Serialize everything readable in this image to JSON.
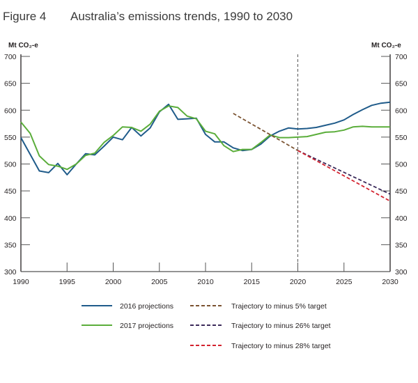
{
  "figure": {
    "number": "Figure 4",
    "title": "Australia’s emissions trends, 1990 to 2030"
  },
  "chart_data": {
    "type": "line",
    "title": "Australia’s emissions trends, 1990 to 2030",
    "xlabel": "",
    "ylabel": "Mt CO2-e",
    "ylabel_left": "Mt CO₂-e",
    "ylabel_right": "Mt CO₂-e",
    "xlim": [
      1990,
      2030
    ],
    "ylim": [
      300,
      700
    ],
    "x_ticks": [
      1990,
      1995,
      2000,
      2005,
      2010,
      2015,
      2020,
      2025,
      2030
    ],
    "y_ticks": [
      300,
      350,
      400,
      450,
      500,
      550,
      600,
      650,
      700
    ],
    "grid": false,
    "reference_line": {
      "x": 2020,
      "style": "dashed",
      "color": "#555555"
    },
    "legend_position": "bottom",
    "series": [
      {
        "name": "2016 projections",
        "style": "solid",
        "color": "#1f5b8a",
        "x": [
          1990,
          1991,
          1992,
          1993,
          1994,
          1995,
          1996,
          1997,
          1998,
          1999,
          2000,
          2001,
          2002,
          2003,
          2004,
          2005,
          2006,
          2007,
          2008,
          2009,
          2010,
          2011,
          2012,
          2013,
          2014,
          2015,
          2016,
          2017,
          2018,
          2019,
          2020,
          2021,
          2022,
          2023,
          2024,
          2025,
          2026,
          2027,
          2028,
          2029,
          2030
        ],
        "values": [
          549,
          518,
          487,
          484,
          501,
          480,
          500,
          519,
          517,
          533,
          550,
          545,
          568,
          552,
          567,
          597,
          611,
          583,
          584,
          585,
          555,
          541,
          541,
          530,
          525,
          527,
          537,
          552,
          561,
          567,
          565,
          566,
          568,
          572,
          576,
          582,
          592,
          601,
          609,
          613,
          615
        ]
      },
      {
        "name": "2017 projections",
        "style": "solid",
        "color": "#5aad3a",
        "x": [
          1990,
          1991,
          1992,
          1993,
          1994,
          1995,
          1996,
          1997,
          1998,
          1999,
          2000,
          2001,
          2002,
          2003,
          2004,
          2005,
          2006,
          2007,
          2008,
          2009,
          2010,
          2011,
          2012,
          2013,
          2014,
          2015,
          2016,
          2017,
          2018,
          2019,
          2020,
          2021,
          2022,
          2023,
          2024,
          2025,
          2026,
          2027,
          2028,
          2029,
          2030
        ],
        "values": [
          578,
          557,
          515,
          499,
          496,
          490,
          500,
          516,
          520,
          540,
          553,
          569,
          568,
          561,
          574,
          598,
          608,
          605,
          589,
          584,
          561,
          556,
          534,
          523,
          527,
          527,
          540,
          554,
          549,
          549,
          550,
          551,
          555,
          559,
          560,
          563,
          569,
          570,
          569,
          569,
          569
        ]
      },
      {
        "name": "Trajectory to minus 5% target",
        "style": "dashed",
        "color": "#7a5230",
        "x": [
          2013,
          2020
        ],
        "values": [
          594,
          525
        ]
      },
      {
        "name": "Trajectory to minus 26% target",
        "style": "dashed",
        "color": "#3b2a5a",
        "x": [
          2020,
          2030
        ],
        "values": [
          525,
          444
        ]
      },
      {
        "name": "Trajectory to minus 28% target",
        "style": "dashed",
        "color": "#d3222e",
        "x": [
          2020,
          2030
        ],
        "values": [
          525,
          431
        ]
      }
    ]
  }
}
